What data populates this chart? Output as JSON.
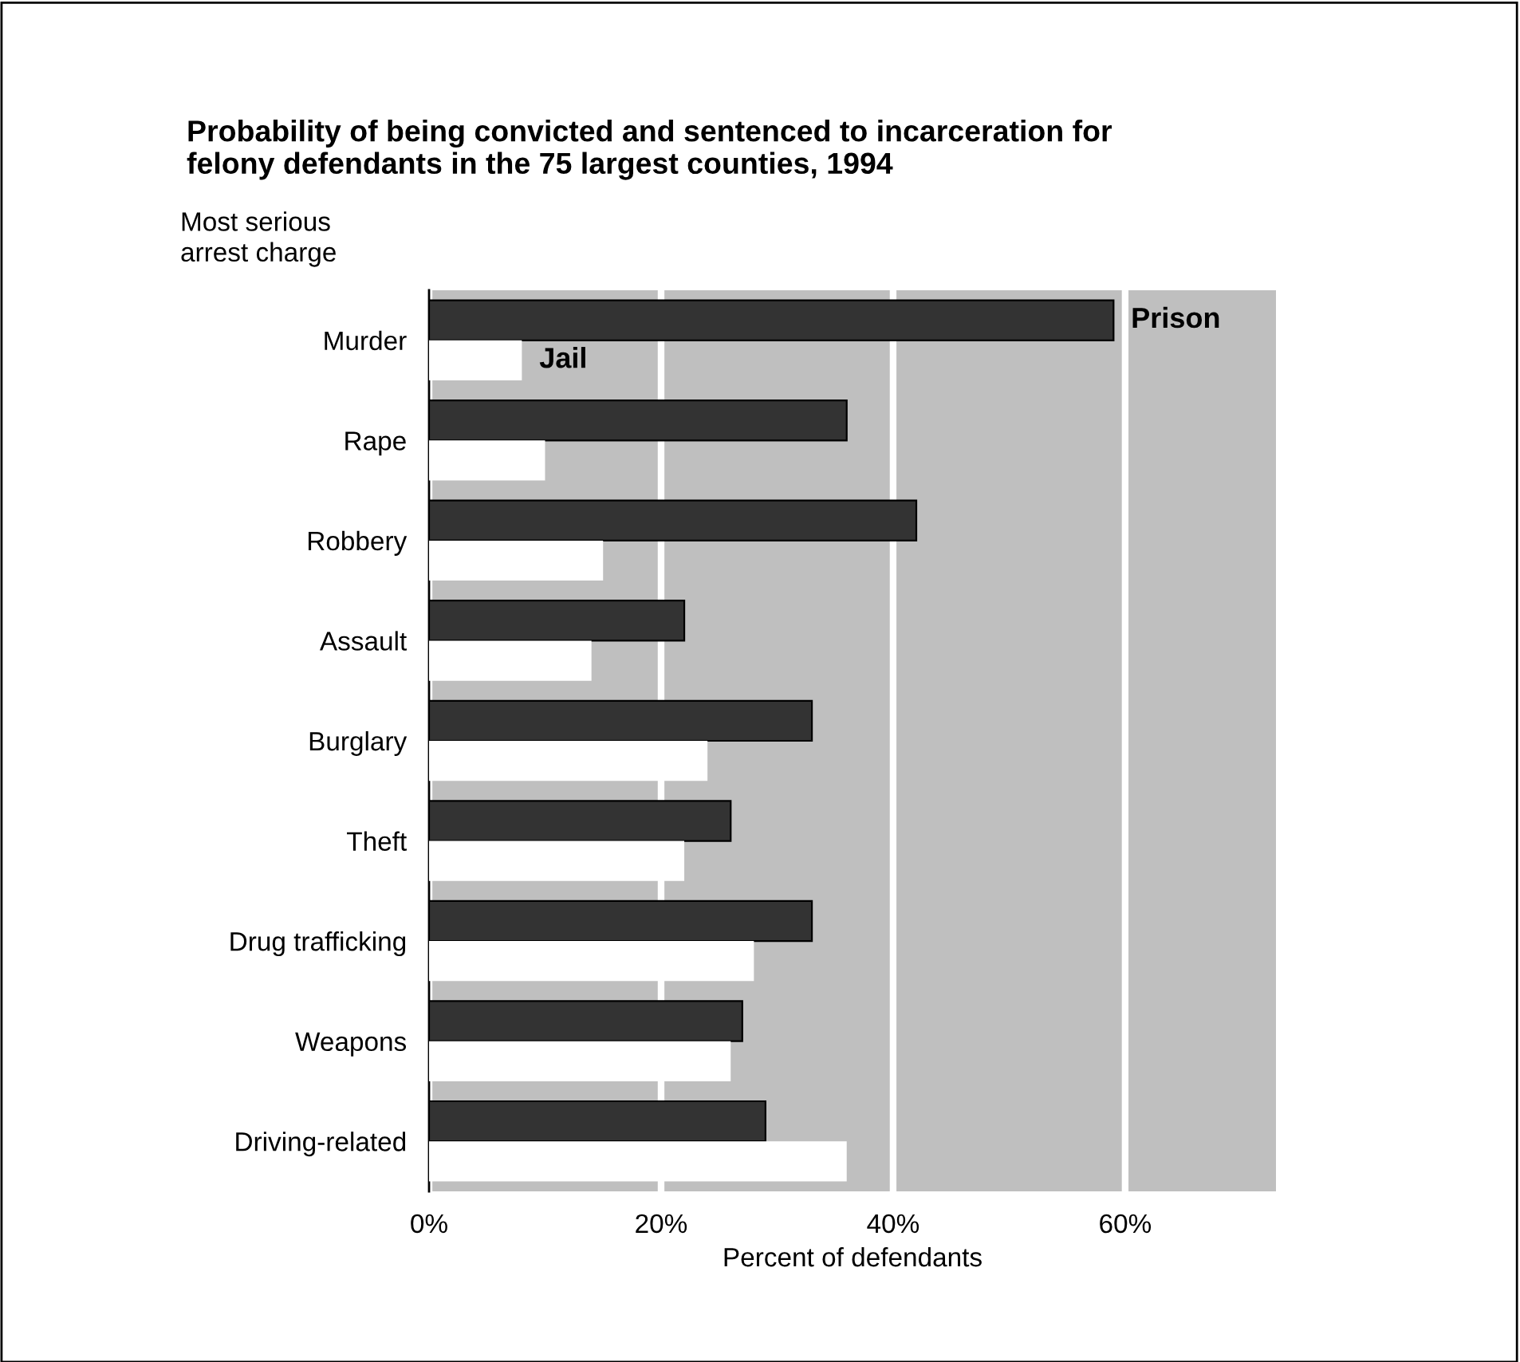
{
  "chart_data": {
    "type": "bar",
    "orientation": "horizontal",
    "title": "Probability of being convicted and sentenced to incarceration for\nfelony defendants in the 75 largest counties, 1994",
    "ylabel": "Most serious\narrest charge",
    "xlabel": "Percent of defendants",
    "categories": [
      "Murder",
      "Rape",
      "Robbery",
      "Assault",
      "Burglary",
      "Theft",
      "Drug trafficking",
      "Weapons",
      "Driving-related"
    ],
    "series": [
      {
        "name": "Prison",
        "color": "#333333",
        "values": [
          59,
          36,
          42,
          22,
          33,
          26,
          33,
          27,
          29
        ]
      },
      {
        "name": "Jail",
        "color": "#ffffff",
        "values": [
          8,
          10,
          15,
          14,
          24,
          22,
          28,
          26,
          36
        ]
      }
    ],
    "xlim": [
      0,
      73
    ],
    "xticks": [
      {
        "value": 0,
        "label": "0%"
      },
      {
        "value": 20,
        "label": "20%"
      },
      {
        "value": 40,
        "label": "40%"
      },
      {
        "value": 60,
        "label": "60%"
      }
    ],
    "grid": "x",
    "legend": false
  }
}
